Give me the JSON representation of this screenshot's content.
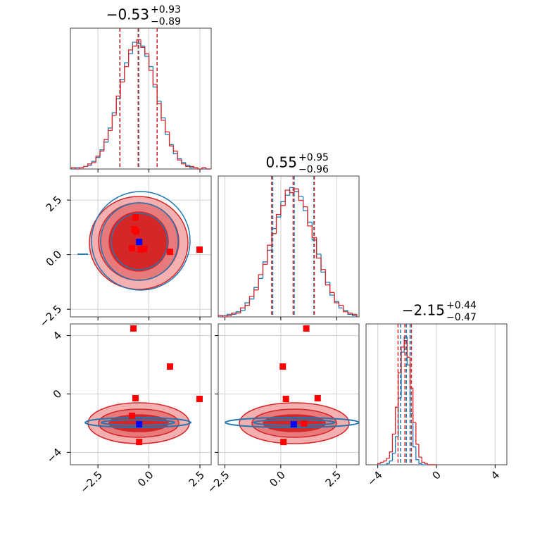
{
  "chart_data": [
    {
      "type": "histogram",
      "title": {
        "value": "−0.53",
        "upper": "+0.93",
        "lower": "−0.89"
      },
      "bins": [
        -3.8,
        -3.6,
        -3.4,
        -3.2,
        -3.0,
        -2.8,
        -2.6,
        -2.4,
        -2.2,
        -2.0,
        -1.8,
        -1.6,
        -1.4,
        -1.2,
        -1.0,
        -0.8,
        -0.6,
        -0.4,
        -0.2,
        0,
        0.2,
        0.4,
        0.6,
        0.8,
        1.0,
        1.2,
        1.4,
        1.6,
        1.8,
        2.0,
        2.2,
        2.4,
        2.6,
        2.8,
        3.0
      ],
      "series": [
        {
          "color": "#1f77b4",
          "values": [
            0,
            1,
            1,
            2,
            3,
            6,
            9,
            15,
            21,
            32,
            44,
            55,
            70,
            83,
            90,
            99,
            98,
            96,
            88,
            80,
            64,
            53,
            40,
            27,
            19,
            12,
            8,
            5,
            3,
            1,
            1,
            0,
            0,
            0
          ],
          "quantiles": [
            -1.43,
            -0.5,
            0.4
          ]
        },
        {
          "color": "#d62728",
          "values": [
            1,
            0,
            1,
            2,
            4,
            5,
            10,
            14,
            23,
            30,
            42,
            57,
            68,
            80,
            93,
            96,
            101,
            95,
            90,
            77,
            66,
            51,
            38,
            29,
            18,
            14,
            7,
            4,
            2,
            2,
            1,
            0,
            1,
            0
          ],
          "quantiles": [
            -1.42,
            -0.53,
            0.4
          ]
        }
      ],
      "xlim": [
        -3.85,
        3.05
      ],
      "ylim": [
        0,
        110
      ],
      "xticks": [
        {
          "value": -2.5,
          "label": "−2.5"
        },
        {
          "value": 0,
          "label": "0.0"
        },
        2.5
      ],
      "grid": true
    },
    {
      "type": "scatter",
      "series": [
        {
          "color": "#ff0000",
          "x": [
            -0.66,
            -0.72,
            -0.62,
            -0.83,
            -0.41,
            -0.24,
            1.03,
            2.48
          ],
          "y": [
            1.71,
            1.16,
            1.06,
            0.29,
            0.23,
            0.26,
            0.13,
            0.23
          ]
        },
        {
          "color": "#0000ff",
          "x": [
            -0.48
          ],
          "y": [
            0.58
          ]
        }
      ],
      "xlim": [
        -3.85,
        3.05
      ],
      "ylim": [
        -2.85,
        3.6
      ],
      "xticks": [
        {
          "value": -2.5,
          "label": "−2.5"
        },
        {
          "value": 0,
          "label": "0.0"
        },
        2.5
      ],
      "yticks": [
        {
          "value": -2.5,
          "label": "−2.5"
        },
        {
          "value": 0,
          "label": "0.0"
        },
        2.5
      ],
      "grid": true
    },
    {
      "type": "histogram",
      "title": {
        "value": "0.55",
        "upper": "+0.95",
        "lower": "−0.96"
      },
      "bins": [
        -2.8,
        -2.6,
        -2.4,
        -2.2,
        -2.0,
        -1.8,
        -1.6,
        -1.4,
        -1.2,
        -1.0,
        -0.8,
        -0.6,
        -0.4,
        -0.2,
        0,
        0.2,
        0.4,
        0.6,
        0.8,
        1.0,
        1.2,
        1.4,
        1.6,
        1.8,
        2.0,
        2.2,
        2.4,
        2.6,
        2.8,
        3.0,
        3.2,
        3.4
      ],
      "series": [
        {
          "color": "#1f77b4",
          "values": [
            0,
            1,
            2,
            2,
            4,
            5,
            11,
            14,
            23,
            30,
            43,
            52,
            69,
            78,
            90,
            95,
            101,
            98,
            94,
            83,
            74,
            60,
            49,
            35,
            27,
            17,
            12,
            7,
            5,
            2,
            1
          ],
          "quantiles": [
            -0.36,
            0.6,
            1.48
          ]
        },
        {
          "color": "#d62728",
          "values": [
            1,
            0,
            1,
            3,
            3,
            7,
            9,
            16,
            21,
            33,
            41,
            56,
            65,
            80,
            87,
            99,
            97,
            100,
            91,
            86,
            71,
            62,
            46,
            37,
            25,
            19,
            11,
            9,
            4,
            3,
            2
          ],
          "quantiles": [
            -0.41,
            0.55,
            1.5
          ]
        }
      ],
      "xlim": [
        -2.8,
        3.5
      ],
      "ylim": [
        0,
        110
      ],
      "xticks": [
        {
          "value": -2.5,
          "label": "−2.5"
        },
        {
          "value": 0,
          "label": "0.0"
        },
        2.5
      ],
      "grid": true
    },
    {
      "type": "scatter",
      "series": [
        {
          "color": "#ff0000",
          "x": [
            -0.76,
            1.03,
            -0.66,
            2.48,
            -0.83,
            -0.48
          ],
          "y": [
            4.49,
            1.88,
            -0.29,
            -0.34,
            -1.5,
            -3.29
          ]
        },
        {
          "color": "#0000ff",
          "x": [
            -0.48
          ],
          "y": [
            -2.08
          ]
        }
      ],
      "xlim": [
        -3.85,
        3.05
      ],
      "ylim": [
        -4.85,
        4.8
      ],
      "xticks": [
        {
          "value": -2.5,
          "label": "−2.5"
        },
        {
          "value": 0,
          "label": "0.0"
        },
        2.5
      ],
      "yticks": [
        {
          "value": -4,
          "label": "−4"
        },
        0,
        4
      ],
      "grid": true
    },
    {
      "type": "scatter",
      "series": [
        {
          "color": "#ff0000",
          "x": [
            1.14,
            0.09,
            0.23,
            1.65,
            1.04,
            0.12
          ],
          "y": [
            4.49,
            1.88,
            -0.34,
            -0.29,
            -2.03,
            -3.29
          ]
        },
        {
          "color": "#0000ff",
          "x": [
            0.58
          ],
          "y": [
            -2.08
          ]
        }
      ],
      "xlim": [
        -2.8,
        3.5
      ],
      "ylim": [
        -4.85,
        4.8
      ],
      "xticks": [
        {
          "value": -2.5,
          "label": "−2.5"
        },
        {
          "value": 0,
          "label": "0.0"
        },
        2.5
      ],
      "yticks": [
        {
          "value": -4,
          "label": "−4"
        },
        0,
        4
      ],
      "grid": true
    },
    {
      "type": "histogram",
      "title": {
        "value": "−2.15",
        "upper": "+0.44",
        "lower": "−0.47"
      },
      "bins": [
        -4.0,
        -3.8,
        -3.6,
        -3.4,
        -3.2,
        -3.0,
        -2.8,
        -2.6,
        -2.4,
        -2.2,
        -2.0,
        -1.8,
        -1.6,
        -1.4,
        -1.2,
        -1.0,
        -0.8,
        -0.6,
        -0.4,
        -0.2,
        0
      ],
      "series": [
        {
          "color": "#1f77b4",
          "values": [
            0,
            0,
            0,
            1,
            3,
            9,
            22,
            52,
            88,
            100,
            78,
            40,
            14,
            4,
            1,
            0,
            0,
            0,
            0,
            0
          ],
          "quantiles": [
            -2.45,
            -2.05,
            -1.8
          ]
        },
        {
          "color": "#d62728",
          "values": [
            1,
            2,
            3,
            5,
            10,
            24,
            45,
            72,
            92,
            97,
            84,
            60,
            33,
            16,
            6,
            2,
            1,
            0,
            0,
            0
          ],
          "quantiles": [
            -2.62,
            -2.15,
            -1.71
          ]
        }
      ],
      "xlim": [
        -4.8,
        4.8
      ],
      "ylim": [
        0,
        110
      ],
      "xticks": [
        {
          "value": -4,
          "label": "−4"
        },
        0,
        4
      ],
      "grid": true
    }
  ]
}
